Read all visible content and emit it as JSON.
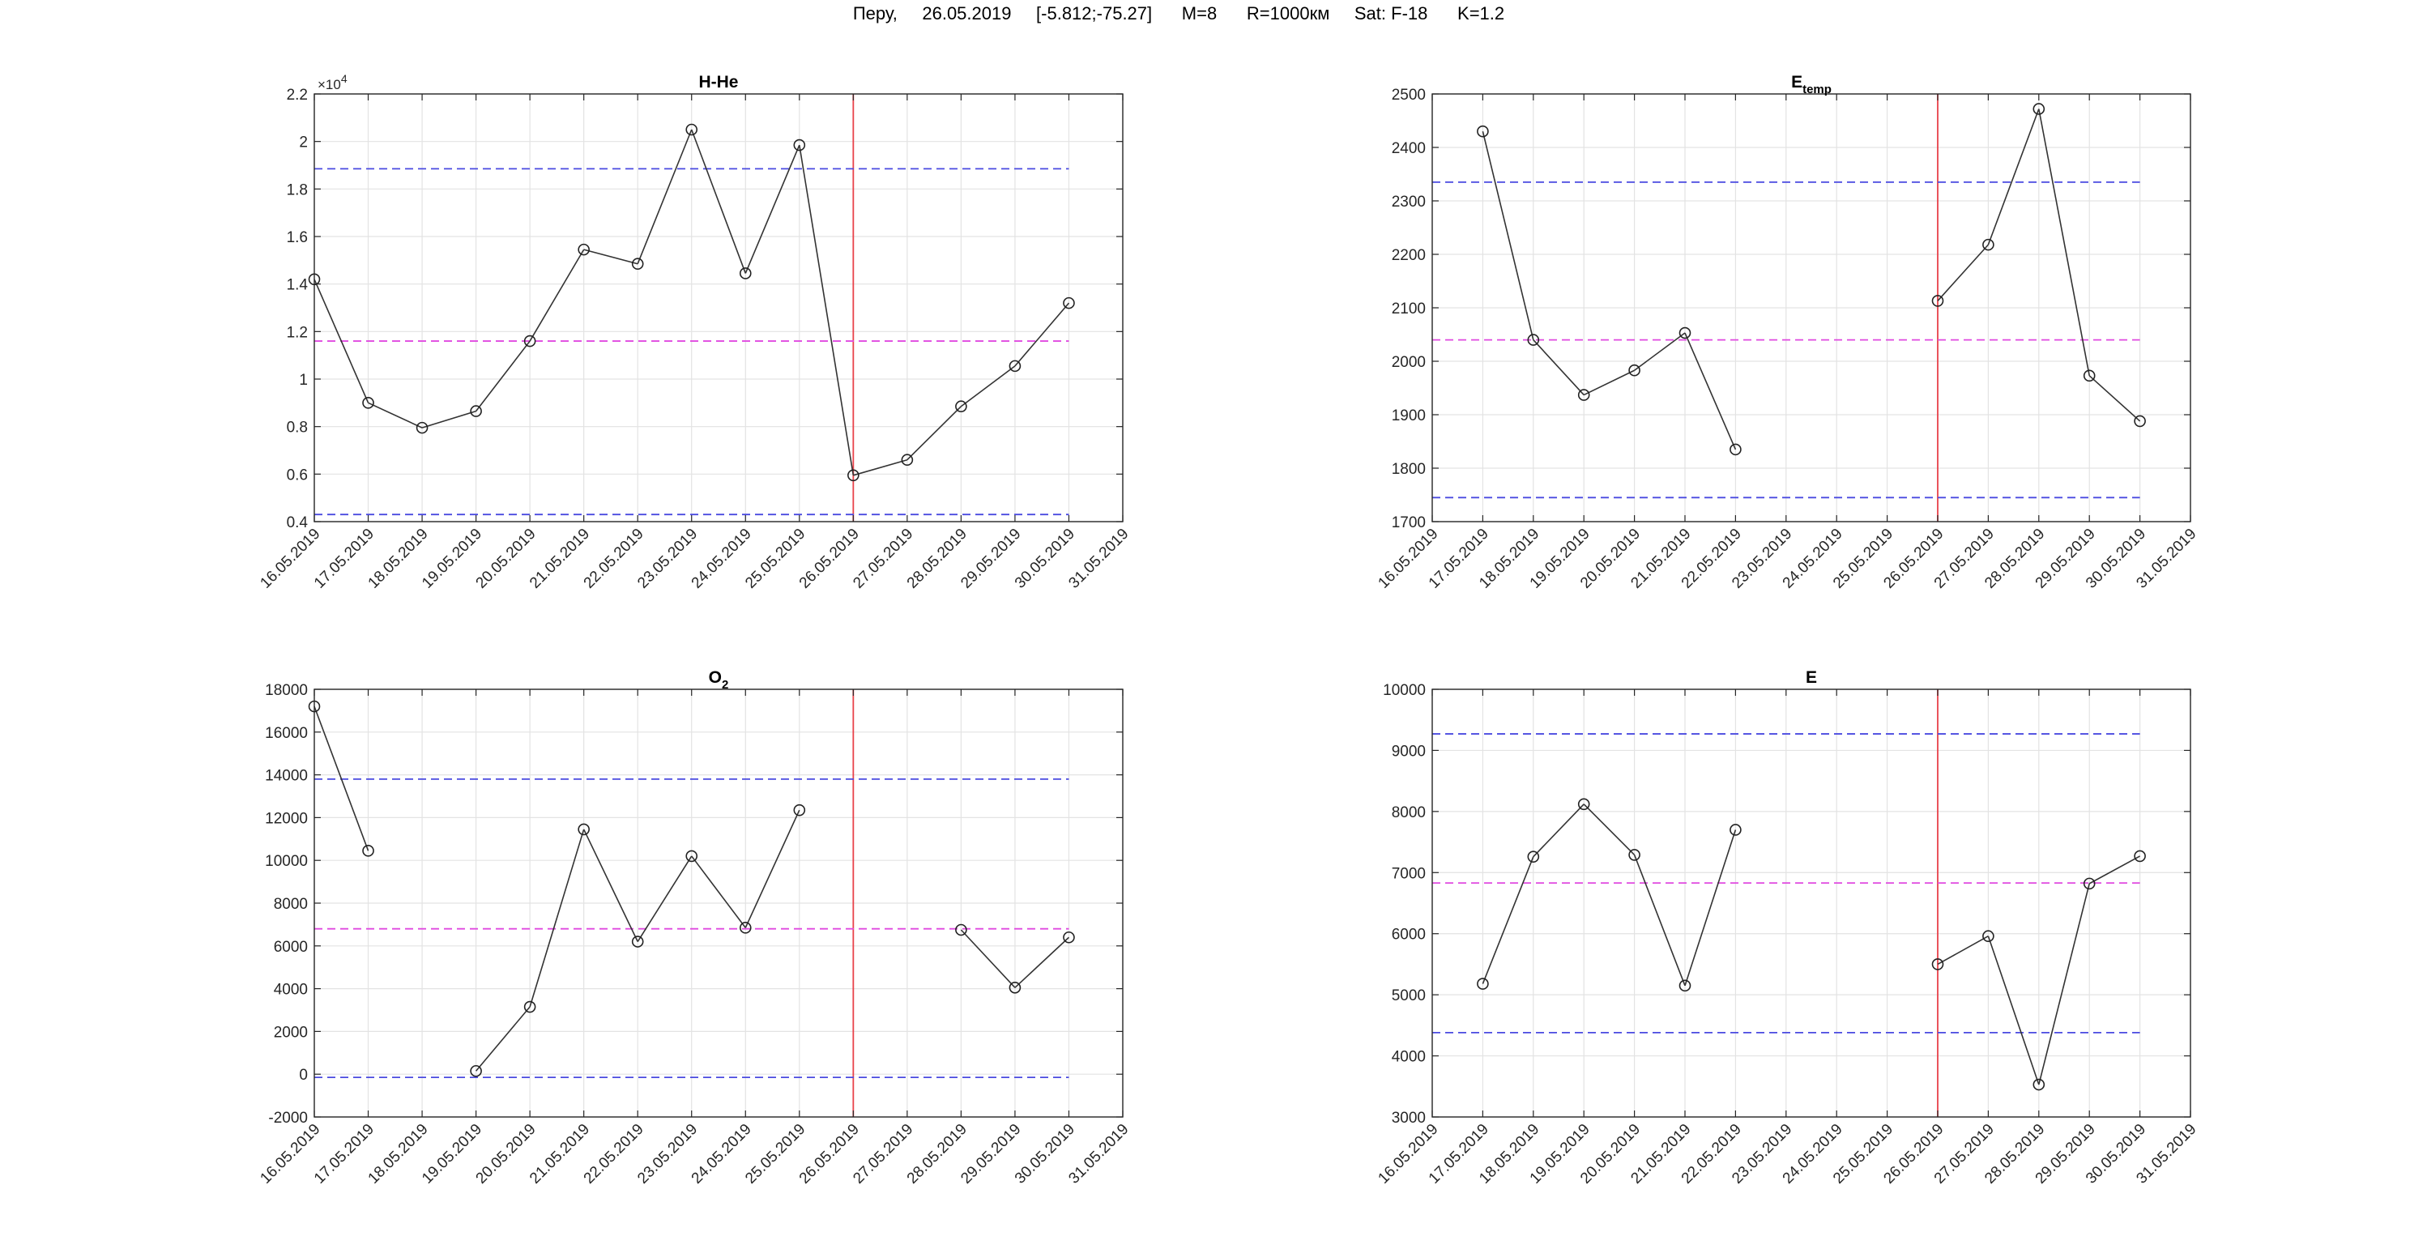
{
  "figure_title": "Перу,     26.05.2019     [-5.812;-75.27]      M=8      R=1000км     Sat: F-18      K=1.2",
  "chart_data": [
    {
      "type": "line",
      "title": "H-He",
      "title_sub": "",
      "exponent_label": "×10",
      "exponent_value": "4",
      "x_ticks": [
        "16.05.2019",
        "17.05.2019",
        "18.05.2019",
        "19.05.2019",
        "20.05.2019",
        "21.05.2019",
        "22.05.2019",
        "23.05.2019",
        "24.05.2019",
        "25.05.2019",
        "26.05.2019",
        "27.05.2019",
        "28.05.2019",
        "29.05.2019",
        "30.05.2019",
        "31.05.2019"
      ],
      "y_ticks": [
        "0.4",
        "0.6",
        "0.8",
        "1",
        "1.2",
        "1.4",
        "1.6",
        "1.8",
        "2",
        "2.2"
      ],
      "ylim": [
        4000,
        22000
      ],
      "grid": true,
      "event_date": "26.05.2019",
      "upper_threshold": 18850,
      "mean_line": 11600,
      "lower_threshold": 4300,
      "series": [
        {
          "values": [
            14200,
            9000,
            7950,
            8650,
            11600,
            15450,
            14850,
            20500,
            14450,
            19850,
            5950,
            6600,
            8850,
            10550,
            13200,
            null
          ]
        }
      ]
    },
    {
      "type": "line",
      "title": "E",
      "title_sub": "temp",
      "exponent_label": "",
      "exponent_value": "",
      "x_ticks": [
        "16.05.2019",
        "17.05.2019",
        "18.05.2019",
        "19.05.2019",
        "20.05.2019",
        "21.05.2019",
        "22.05.2019",
        "23.05.2019",
        "24.05.2019",
        "25.05.2019",
        "26.05.2019",
        "27.05.2019",
        "28.05.2019",
        "29.05.2019",
        "30.05.2019",
        "31.05.2019"
      ],
      "y_ticks": [
        "1700",
        "1800",
        "1900",
        "2000",
        "2100",
        "2200",
        "2300",
        "2400",
        "2500"
      ],
      "ylim": [
        1700,
        2500
      ],
      "grid": true,
      "event_date": "26.05.2019",
      "upper_threshold": 2335,
      "mean_line": 2040,
      "lower_threshold": 1745,
      "series": [
        {
          "values": [
            null,
            2430,
            2040,
            1937,
            1983,
            2053,
            1835,
            null,
            null,
            null,
            2113,
            2218,
            2472,
            1973,
            1888,
            null
          ]
        }
      ]
    },
    {
      "type": "line",
      "title": "O",
      "title_sub": "2",
      "exponent_label": "",
      "exponent_value": "",
      "x_ticks": [
        "16.05.2019",
        "17.05.2019",
        "18.05.2019",
        "19.05.2019",
        "20.05.2019",
        "21.05.2019",
        "22.05.2019",
        "23.05.2019",
        "24.05.2019",
        "25.05.2019",
        "26.05.2019",
        "27.05.2019",
        "28.05.2019",
        "29.05.2019",
        "30.05.2019",
        "31.05.2019"
      ],
      "y_ticks": [
        "-2000",
        "0",
        "2000",
        "4000",
        "6000",
        "8000",
        "10000",
        "12000",
        "14000",
        "16000",
        "18000"
      ],
      "ylim": [
        -2000,
        18000
      ],
      "grid": true,
      "event_date": "26.05.2019",
      "upper_threshold": 13800,
      "mean_line": 6800,
      "lower_threshold": -150,
      "series": [
        {
          "values": [
            17200,
            10450,
            null,
            150,
            3150,
            11450,
            6200,
            10200,
            6850,
            12350,
            null,
            null,
            6750,
            4050,
            6400,
            null
          ]
        }
      ]
    },
    {
      "type": "line",
      "title": "E",
      "title_sub": "",
      "exponent_label": "",
      "exponent_value": "",
      "x_ticks": [
        "16.05.2019",
        "17.05.2019",
        "18.05.2019",
        "19.05.2019",
        "20.05.2019",
        "21.05.2019",
        "22.05.2019",
        "23.05.2019",
        "24.05.2019",
        "25.05.2019",
        "26.05.2019",
        "27.05.2019",
        "28.05.2019",
        "29.05.2019",
        "30.05.2019",
        "31.05.2019"
      ],
      "y_ticks": [
        "3000",
        "4000",
        "5000",
        "6000",
        "7000",
        "8000",
        "9000",
        "10000"
      ],
      "ylim": [
        3000,
        10000
      ],
      "grid": true,
      "event_date": "26.05.2019",
      "upper_threshold": 9270,
      "mean_line": 6830,
      "lower_threshold": 4380,
      "series": [
        {
          "values": [
            null,
            5180,
            7260,
            8120,
            7290,
            5150,
            7700,
            null,
            null,
            null,
            5500,
            5960,
            3530,
            6820,
            7270,
            null
          ]
        }
      ]
    }
  ]
}
